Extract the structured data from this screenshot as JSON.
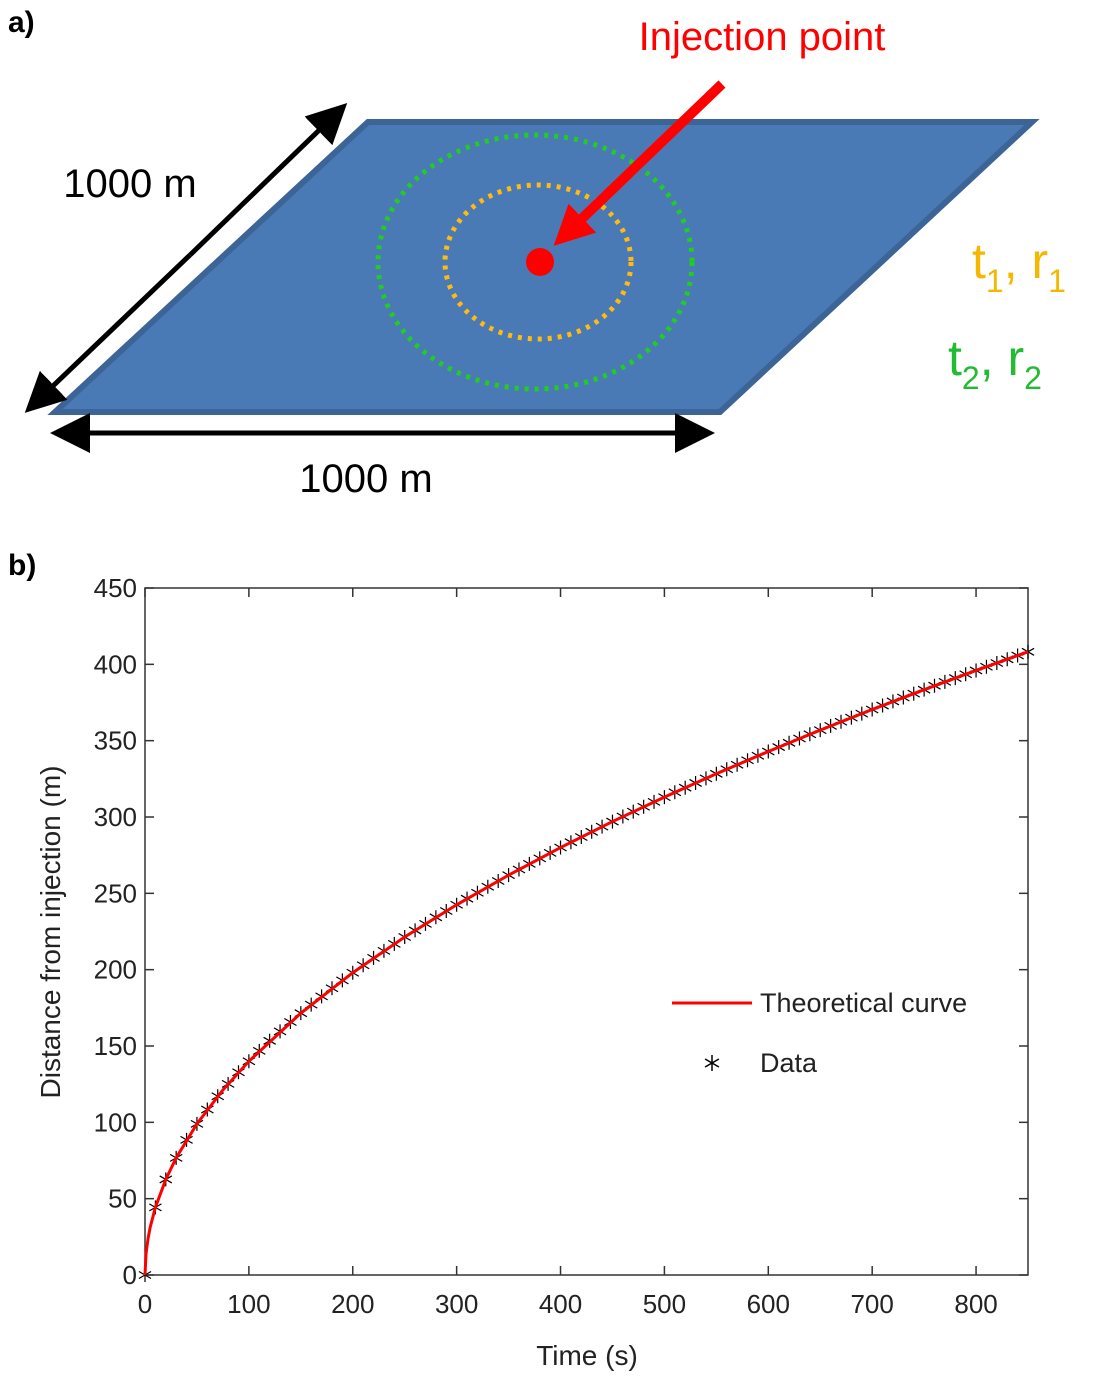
{
  "panel_a": {
    "label": "a)",
    "injection_label": "Injection point",
    "depth_label": "1000 m",
    "width_label": "1000 m",
    "time_radius_1": [
      "t",
      "1",
      ", r",
      "1"
    ],
    "time_radius_2": [
      "t",
      "2",
      ", r",
      "2"
    ]
  },
  "chart_data": {
    "type": "line",
    "panel_label": "b)",
    "x_label": "Time (s)",
    "y_label": "Distance from injection (m)",
    "xlim": [
      0,
      850
    ],
    "xticks": [
      0,
      100,
      200,
      300,
      400,
      500,
      600,
      700,
      800
    ],
    "ylim": [
      0,
      450
    ],
    "yticks": [
      0,
      50,
      100,
      150,
      200,
      250,
      300,
      350,
      400,
      450
    ],
    "legend": "east",
    "series": [
      {
        "name": "Theoretical curve",
        "color": "#ff0000",
        "marker": "none",
        "x": [
          0,
          1,
          3,
          5,
          10,
          20,
          30,
          50,
          75,
          100,
          150,
          200,
          250,
          300,
          350,
          400,
          450,
          500,
          550,
          600,
          650,
          700,
          750,
          800,
          850
        ],
        "values": [
          0,
          14,
          24.2,
          31.3,
          44.3,
          62.6,
          76.7,
          99,
          121.2,
          140,
          171.5,
          198,
          221.4,
          242.5,
          261.9,
          280,
          297,
          313,
          328.3,
          342.9,
          356.9,
          370.4,
          383.4,
          396,
          408.2
        ]
      },
      {
        "name": "Data",
        "color": "#000000",
        "marker": "asterisk",
        "x": [
          0,
          10,
          20,
          30,
          40,
          50,
          60,
          70,
          80,
          90,
          100,
          110,
          120,
          130,
          140,
          150,
          160,
          170,
          180,
          190,
          200,
          210,
          220,
          230,
          240,
          250,
          260,
          270,
          280,
          290,
          300,
          310,
          320,
          330,
          340,
          350,
          360,
          370,
          380,
          390,
          400,
          410,
          420,
          430,
          440,
          450,
          460,
          470,
          480,
          490,
          500,
          510,
          520,
          530,
          540,
          550,
          560,
          570,
          580,
          590,
          600,
          610,
          620,
          630,
          640,
          650,
          660,
          670,
          680,
          690,
          700,
          710,
          720,
          730,
          740,
          750,
          760,
          770,
          780,
          790,
          800,
          810,
          820,
          830,
          840,
          850
        ],
        "values": [
          0,
          44.3,
          62.6,
          76.7,
          88.5,
          99,
          108.4,
          117.1,
          125.2,
          132.8,
          140,
          146.8,
          153.4,
          159.6,
          165.7,
          171.5,
          177.1,
          182.5,
          187.8,
          193,
          198,
          202.9,
          207.7,
          212.3,
          216.9,
          221.4,
          225.7,
          230,
          234.3,
          238.4,
          242.5,
          246.5,
          250.4,
          254.3,
          258.1,
          261.9,
          265.6,
          269.3,
          272.9,
          276.5,
          280,
          283.5,
          286.9,
          290.3,
          293.7,
          297,
          300.3,
          303.5,
          306.7,
          309.9,
          313,
          316.2,
          319.2,
          322.3,
          325.3,
          328.3,
          331.3,
          334.2,
          337.2,
          340.1,
          342.9,
          345.8,
          348.6,
          351.4,
          354.2,
          356.9,
          359.7,
          362.4,
          365.1,
          367.7,
          370.4,
          373,
          375.7,
          378.3,
          380.8,
          383.4,
          386,
          388.5,
          391,
          393.5,
          396,
          398.4,
          400.9,
          403.3,
          405.8,
          408.2
        ]
      }
    ]
  }
}
